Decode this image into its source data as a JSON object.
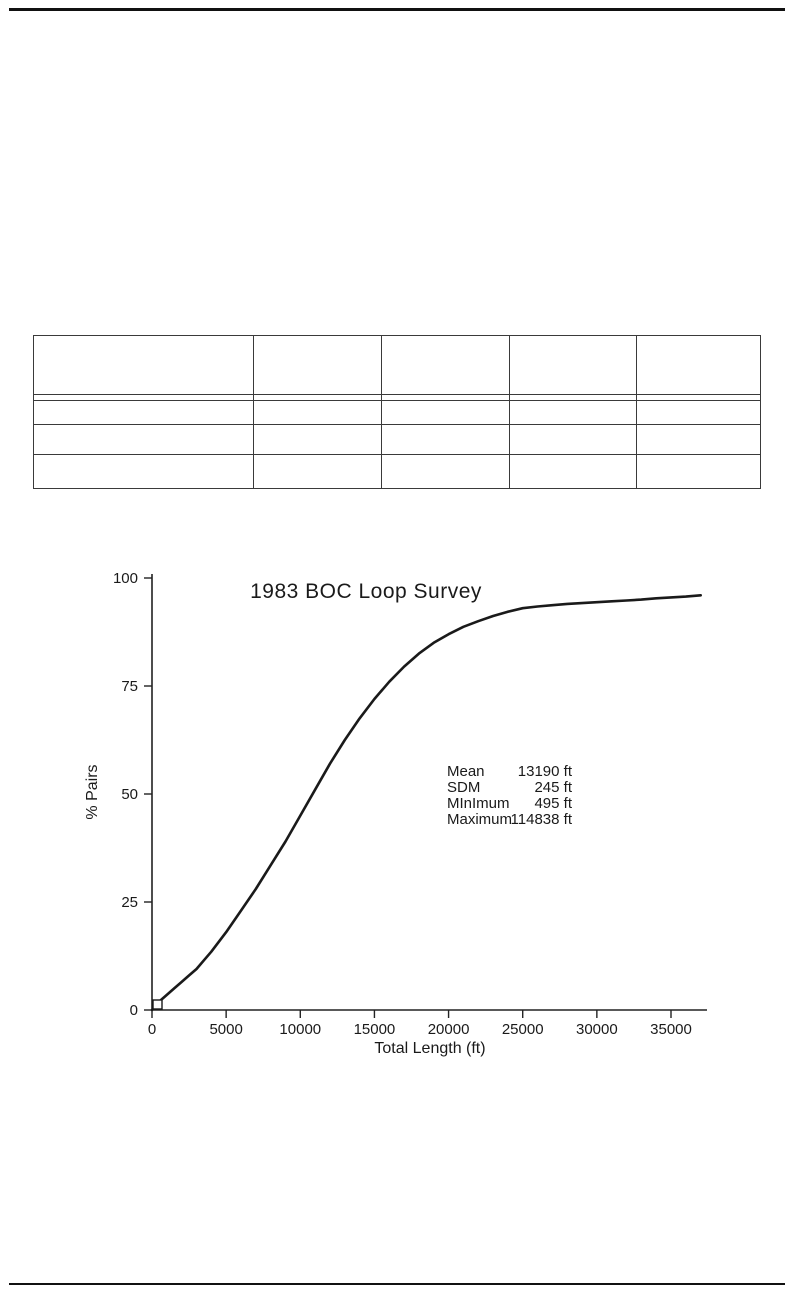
{
  "table": {
    "headers": [
      "",
      "",
      "",
      "",
      ""
    ],
    "rows": [
      [
        "",
        "",
        "",
        "",
        ""
      ],
      [
        "",
        "",
        "",
        "",
        ""
      ],
      [
        "",
        "",
        "",
        "",
        ""
      ],
      [
        "",
        "",
        "",
        "",
        ""
      ]
    ]
  },
  "chart_data": {
    "type": "line",
    "title": "1983 BOC Loop Survey",
    "xlabel": "Total Length (ft)",
    "ylabel": "% Pairs",
    "xlim": [
      0,
      38000
    ],
    "ylim": [
      0,
      100
    ],
    "x_ticks": [
      0,
      5000,
      10000,
      15000,
      20000,
      25000,
      30000,
      35000
    ],
    "y_ticks": [
      0,
      25,
      50,
      75,
      100
    ],
    "grid": false,
    "legend": "none",
    "line_color": "#1a1a1a",
    "axis_color": "#222222",
    "series": [
      {
        "name": "cumulative-percent-pairs",
        "x": [
          0,
          250,
          500,
          1000,
          1500,
          2000,
          2500,
          3000,
          3500,
          4000,
          5000,
          6000,
          7000,
          8000,
          9000,
          10000,
          11000,
          12000,
          13000,
          14000,
          15000,
          16000,
          17000,
          18000,
          19000,
          20000,
          21000,
          22000,
          23000,
          24000,
          25000,
          26000,
          27000,
          28000,
          29000,
          30000,
          31000,
          32000,
          33000,
          34000,
          35000,
          36000,
          37000
        ],
        "y": [
          0,
          1,
          2,
          3.5,
          5,
          6.5,
          8,
          9.5,
          11.5,
          13.5,
          18,
          23,
          28,
          33.5,
          39,
          45,
          51,
          57,
          62.5,
          67.5,
          72,
          76,
          79.5,
          82.5,
          85,
          87,
          88.7,
          90,
          91.2,
          92.2,
          93,
          93.4,
          93.7,
          94,
          94.2,
          94.4,
          94.6,
          94.8,
          95,
          95.3,
          95.5,
          95.7,
          96
        ]
      }
    ],
    "stats": [
      {
        "label": "Mean",
        "value": "13190",
        "unit": "ft"
      },
      {
        "label": "SDM",
        "value": "245",
        "unit": "ft"
      },
      {
        "label": "MInImum",
        "value": "495",
        "unit": "ft"
      },
      {
        "label": "Maximum",
        "value": "114838",
        "unit": "ft"
      }
    ]
  }
}
